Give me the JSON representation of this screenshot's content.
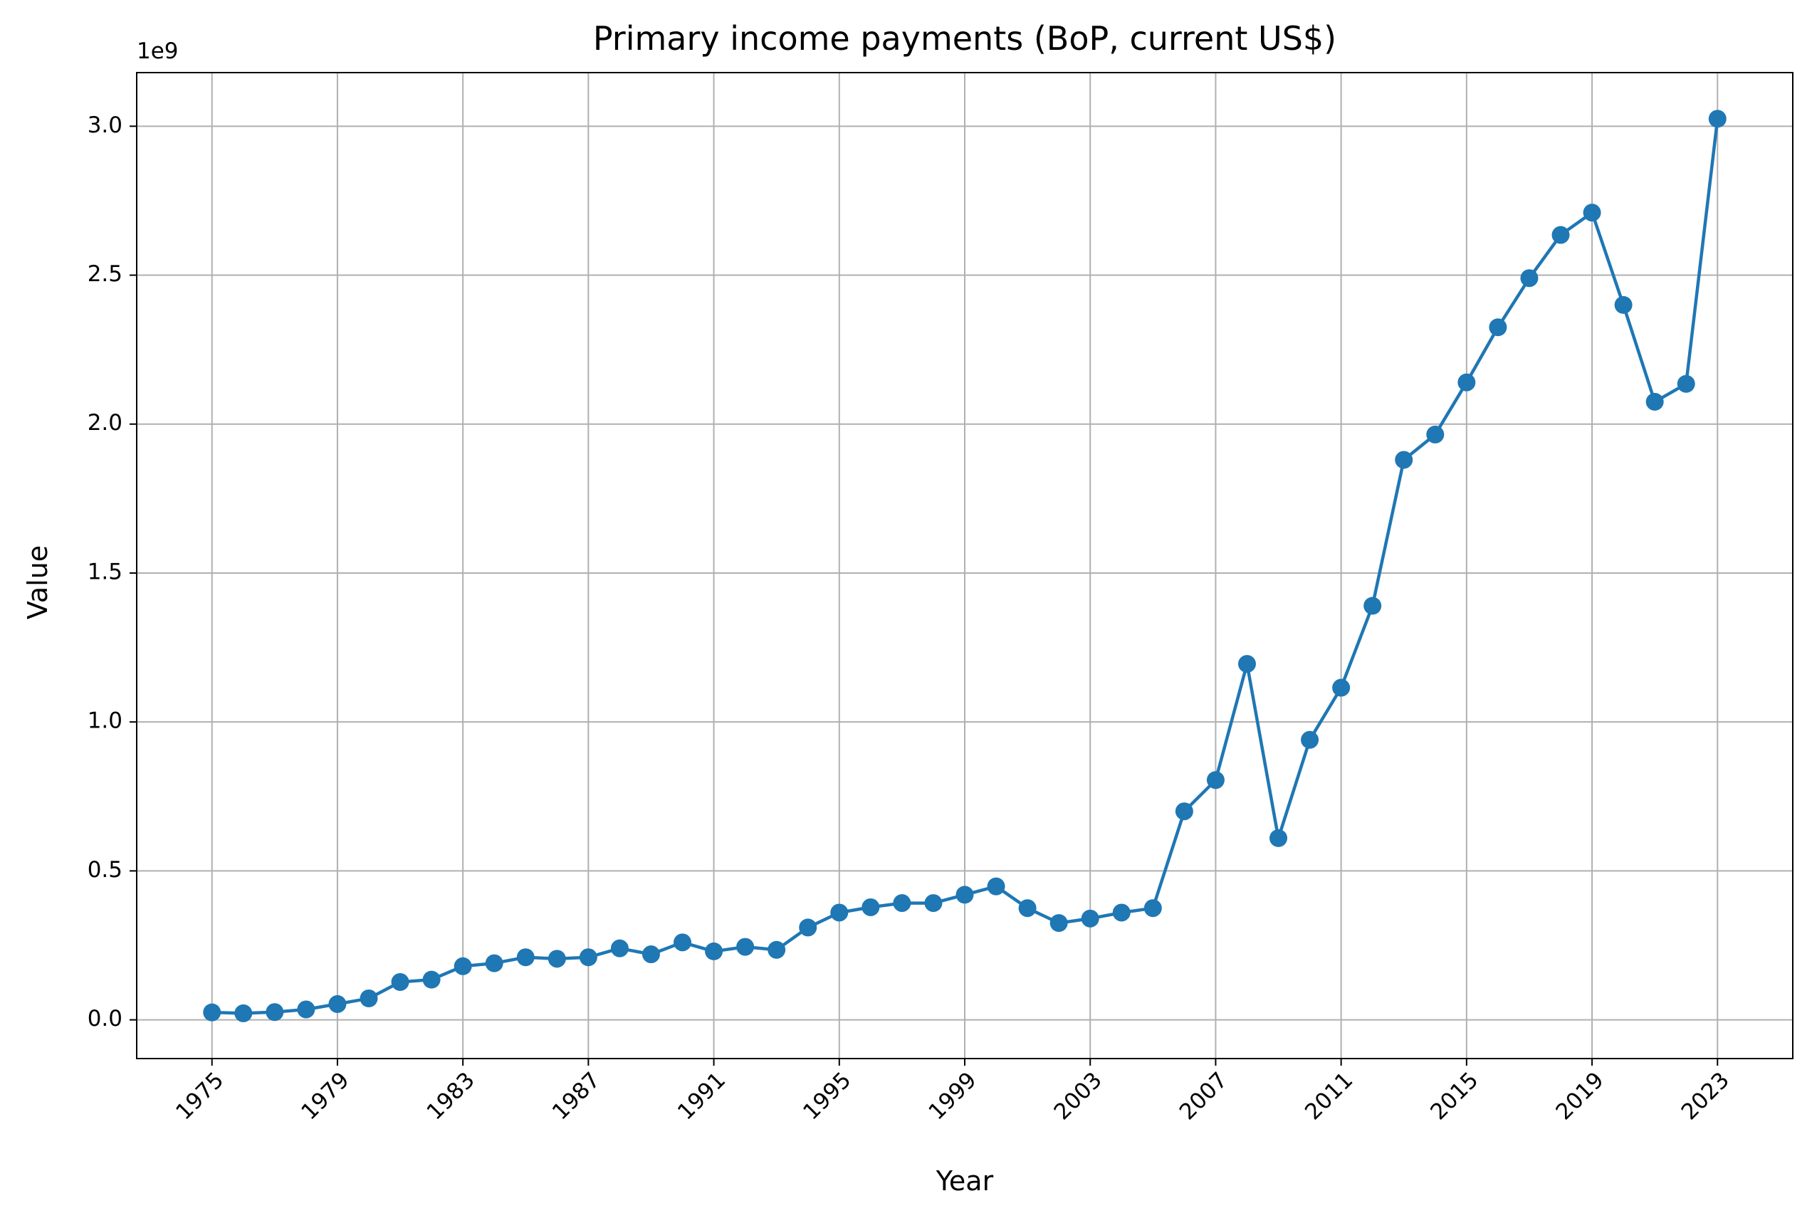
{
  "chart_data": {
    "type": "line",
    "title": "Primary income payments (BoP, current US$)",
    "xlabel": "Year",
    "ylabel": "Value",
    "y_offset_label": "1e9",
    "xlim": [
      1972.6,
      2025.4
    ],
    "ylim": [
      -0.13,
      3.18
    ],
    "x_ticks": [
      1975,
      1979,
      1983,
      1987,
      1991,
      1995,
      1999,
      2003,
      2007,
      2011,
      2015,
      2019,
      2023
    ],
    "x_tick_labels": [
      "1975",
      "1979",
      "1983",
      "1987",
      "1991",
      "1995",
      "1999",
      "2003",
      "2007",
      "2011",
      "2015",
      "2019",
      "2023"
    ],
    "y_ticks": [
      0.0,
      0.5,
      1.0,
      1.5,
      2.0,
      2.5,
      3.0
    ],
    "y_tick_labels": [
      "0.0",
      "0.5",
      "1.0",
      "1.5",
      "2.0",
      "2.5",
      "3.0"
    ],
    "grid": true,
    "color": "#1f77b4",
    "marker": "circle",
    "x": [
      1975,
      1976,
      1977,
      1978,
      1979,
      1980,
      1981,
      1982,
      1983,
      1984,
      1985,
      1986,
      1987,
      1988,
      1989,
      1990,
      1991,
      1992,
      1993,
      1994,
      1995,
      1996,
      1997,
      1998,
      1999,
      2000,
      2001,
      2002,
      2003,
      2004,
      2005,
      2006,
      2007,
      2008,
      2009,
      2010,
      2011,
      2012,
      2013,
      2014,
      2015,
      2016,
      2017,
      2018,
      2019,
      2020,
      2021,
      2022,
      2023
    ],
    "values": [
      0.025,
      0.022,
      0.026,
      0.035,
      0.053,
      0.072,
      0.127,
      0.135,
      0.18,
      0.19,
      0.21,
      0.205,
      0.21,
      0.24,
      0.22,
      0.26,
      0.23,
      0.245,
      0.235,
      0.31,
      0.36,
      0.378,
      0.392,
      0.392,
      0.42,
      0.448,
      0.375,
      0.325,
      0.34,
      0.36,
      0.375,
      0.7,
      0.805,
      1.195,
      0.61,
      0.94,
      1.115,
      1.39,
      1.88,
      1.965,
      2.14,
      2.325,
      2.49,
      2.635,
      2.71,
      2.4,
      2.075,
      2.135,
      3.025
    ]
  }
}
